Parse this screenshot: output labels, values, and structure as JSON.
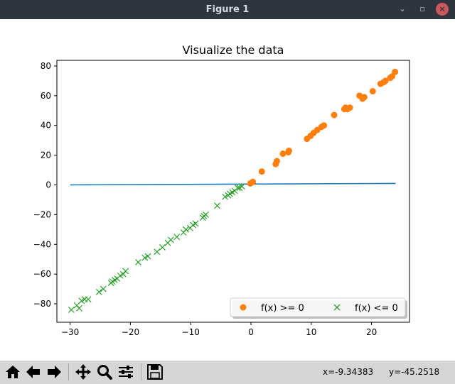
{
  "window": {
    "title": "Figure 1",
    "controls": {
      "minimize": "⌄",
      "restore": "▫",
      "close": "×"
    }
  },
  "chart_data": {
    "type": "scatter",
    "title": "Visualize the data",
    "xlabel": "",
    "ylabel": "",
    "xlim": [
      -32.2,
      26.3
    ],
    "ylim": [
      -92.4,
      83.8
    ],
    "xticks": [
      -30,
      -20,
      -10,
      0,
      10,
      20
    ],
    "xtick_labels": [
      "−30",
      "−20",
      "−10",
      "0",
      "10",
      "20"
    ],
    "yticks": [
      -80,
      -60,
      -40,
      -20,
      0,
      20,
      40,
      60,
      80
    ],
    "ytick_labels": [
      "−80",
      "−60",
      "−40",
      "−20",
      "0",
      "20",
      "40",
      "60",
      "80"
    ],
    "grid": false,
    "legend": {
      "position": "lower-right",
      "columns": 2
    },
    "colors": {
      "line": "#1f77b4",
      "positive": "#ff7f0e",
      "negative": "#2ca02c"
    },
    "line": {
      "x": [
        -30,
        24
      ],
      "y": [
        0,
        1
      ]
    },
    "series": [
      {
        "name": "f(x) >= 0",
        "marker": "circle",
        "x": [
          -0.1,
          0.3,
          1.8,
          4.1,
          4.3,
          5.3,
          6.2,
          6.3,
          9.3,
          9.9,
          10.4,
          11.0,
          11.7,
          12.1,
          13.8,
          15.5,
          15.7,
          16.0,
          16.4,
          18.0,
          18.5,
          18.8,
          20.2,
          21.5,
          22.0,
          22.3,
          23.1,
          23.4,
          23.9
        ],
        "y": [
          1,
          2,
          9,
          14,
          16,
          21,
          22,
          23,
          31,
          33,
          35,
          37,
          39,
          40,
          47,
          51,
          52,
          51,
          52,
          60,
          58,
          59,
          63,
          68,
          69,
          70,
          72,
          73,
          76
        ]
      },
      {
        "name": "f(x) <= 0",
        "marker": "x",
        "x": [
          -29.8,
          -28.9,
          -28.5,
          -28.1,
          -27.6,
          -27.0,
          -25.2,
          -24.5,
          -23.2,
          -23.0,
          -22.6,
          -22.2,
          -21.7,
          -21.2,
          -20.8,
          -18.7,
          -17.6,
          -17.1,
          -15.6,
          -14.7,
          -13.8,
          -13.3,
          -12.3,
          -11.2,
          -10.8,
          -10.1,
          -9.6,
          -9.2,
          -8.0,
          -7.8,
          -7.5,
          -5.6,
          -4.3,
          -3.8,
          -3.5,
          -3.1,
          -2.7,
          -2.2,
          -1.9,
          -1.5
        ],
        "y": [
          -84,
          -81,
          -83,
          -78,
          -77,
          -77,
          -72,
          -70,
          -66,
          -65,
          -64,
          -63,
          -61,
          -60,
          -58,
          -52,
          -49,
          -48,
          -45,
          -42,
          -39,
          -37,
          -35,
          -32,
          -30,
          -29,
          -27,
          -26,
          -22,
          -21,
          -20,
          -14,
          -8,
          -7,
          -6,
          -5,
          -4,
          -2,
          -2,
          -1
        ]
      }
    ]
  },
  "toolbar": {
    "buttons": [
      {
        "name": "home",
        "icon": "home-icon"
      },
      {
        "name": "back",
        "icon": "arrow-left-icon"
      },
      {
        "name": "forward",
        "icon": "arrow-right-icon"
      },
      {
        "name": "pan",
        "icon": "pan-icon"
      },
      {
        "name": "zoom",
        "icon": "zoom-icon"
      },
      {
        "name": "configure",
        "icon": "sliders-icon"
      },
      {
        "name": "save",
        "icon": "floppy-icon"
      }
    ],
    "coord_x": "x=-9.34383",
    "coord_y": "y=-45.2518"
  }
}
